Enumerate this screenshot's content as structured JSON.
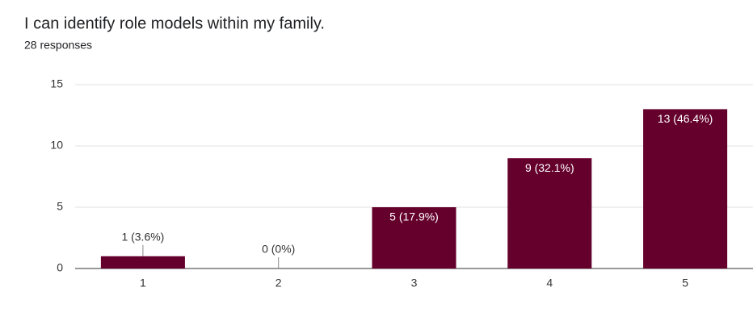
{
  "chart_data": {
    "type": "bar",
    "title": "I can identify role models within my family.",
    "subtitle": "28 responses",
    "categories": [
      "1",
      "2",
      "3",
      "4",
      "5"
    ],
    "values": [
      1,
      0,
      5,
      9,
      13
    ],
    "value_labels": [
      "1 (3.6%)",
      "0 (0%)",
      "5 (17.9%)",
      "9 (32.1%)",
      "13 (46.4%)"
    ],
    "color": "#65002d",
    "ylim": [
      0,
      15
    ],
    "yticks": [
      0,
      5,
      10,
      15
    ],
    "grid": true
  }
}
